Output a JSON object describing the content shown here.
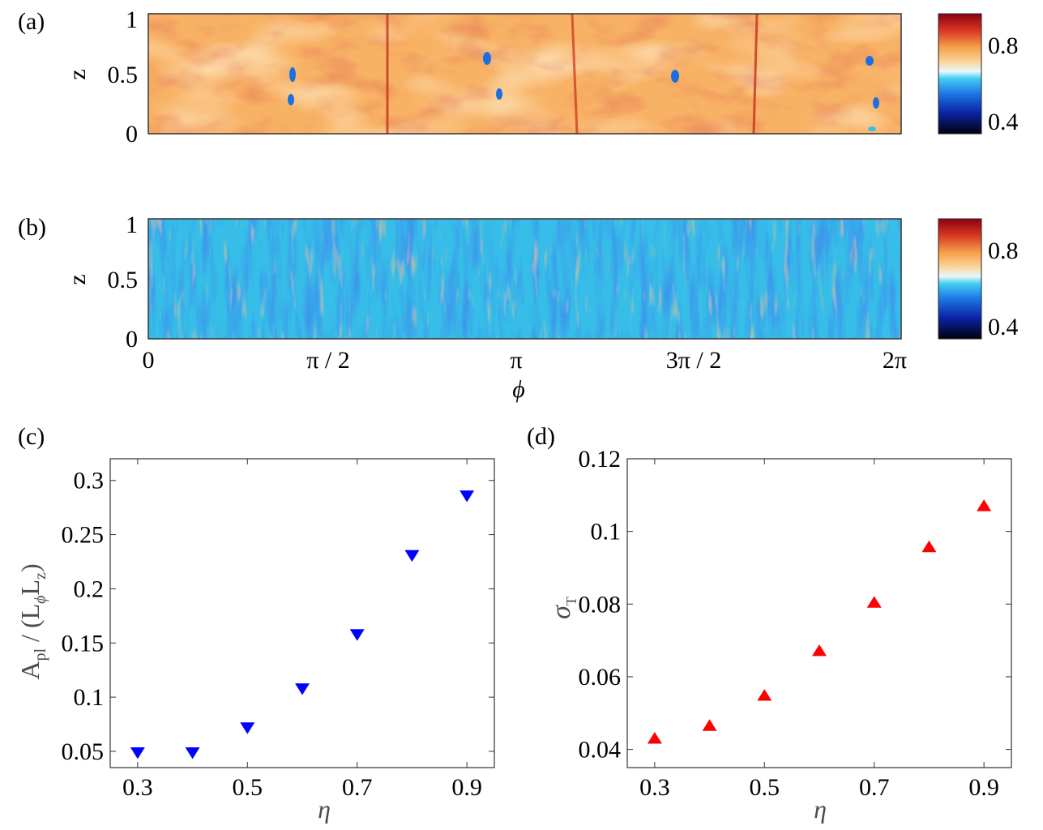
{
  "colors": {
    "blue_marker": "#0000ff",
    "red_marker": "#ff0000",
    "axis_grey": "#4d4d4d"
  },
  "panels": {
    "a": {
      "label": "(a)",
      "ylabel": "z",
      "yticks": [
        "0",
        "0.5",
        "1"
      ],
      "colorbar_ticks": [
        "0.4",
        "0.8"
      ],
      "dominant_field": "warm"
    },
    "b": {
      "label": "(b)",
      "ylabel": "z",
      "yticks": [
        "0",
        "0.5",
        "1"
      ],
      "colorbar_ticks": [
        "0.4",
        "0.8"
      ],
      "dominant_field": "cool",
      "xticks": [
        "0",
        "π / 2",
        "π",
        "3π / 2",
        "2π"
      ],
      "xlabel": "ϕ"
    }
  },
  "chart_data": [
    {
      "type": "scatter",
      "panel": "(c)",
      "marker": "triangle-down",
      "color": "#0000ff",
      "xlabel": "η",
      "ylabel": "A_pl / (L_ϕ L_z)",
      "ylabel_parts": {
        "A": "A",
        "pl": "pl",
        "mid": " / (L",
        "phi": "ϕ",
        "L": "L",
        "z": "z",
        "end": ")"
      },
      "xlim": [
        0.25,
        0.95
      ],
      "ylim": [
        0.035,
        0.32
      ],
      "xticks": [
        "0.3",
        "0.5",
        "0.7",
        "0.9"
      ],
      "yticks": [
        "0.05",
        "0.1",
        "0.15",
        "0.2",
        "0.25",
        "0.3"
      ],
      "x": [
        0.3,
        0.4,
        0.5,
        0.6,
        0.7,
        0.8,
        0.9
      ],
      "y": [
        0.049,
        0.049,
        0.072,
        0.108,
        0.158,
        0.231,
        0.286
      ]
    },
    {
      "type": "scatter",
      "panel": "(d)",
      "marker": "triangle-up",
      "color": "#ff0000",
      "xlabel": "η",
      "ylabel": "σ_T",
      "ylabel_parts": {
        "sigma": "σ",
        "T": "T"
      },
      "xlim": [
        0.25,
        0.95
      ],
      "ylim": [
        0.035,
        0.12
      ],
      "xticks": [
        "0.3",
        "0.5",
        "0.7",
        "0.9"
      ],
      "yticks": [
        "0.04",
        "0.06",
        "0.08",
        "0.1",
        "0.12"
      ],
      "x": [
        0.3,
        0.4,
        0.5,
        0.6,
        0.7,
        0.8,
        0.9
      ],
      "y": [
        0.043,
        0.0465,
        0.0548,
        0.0671,
        0.0804,
        0.0957,
        0.107
      ]
    }
  ]
}
